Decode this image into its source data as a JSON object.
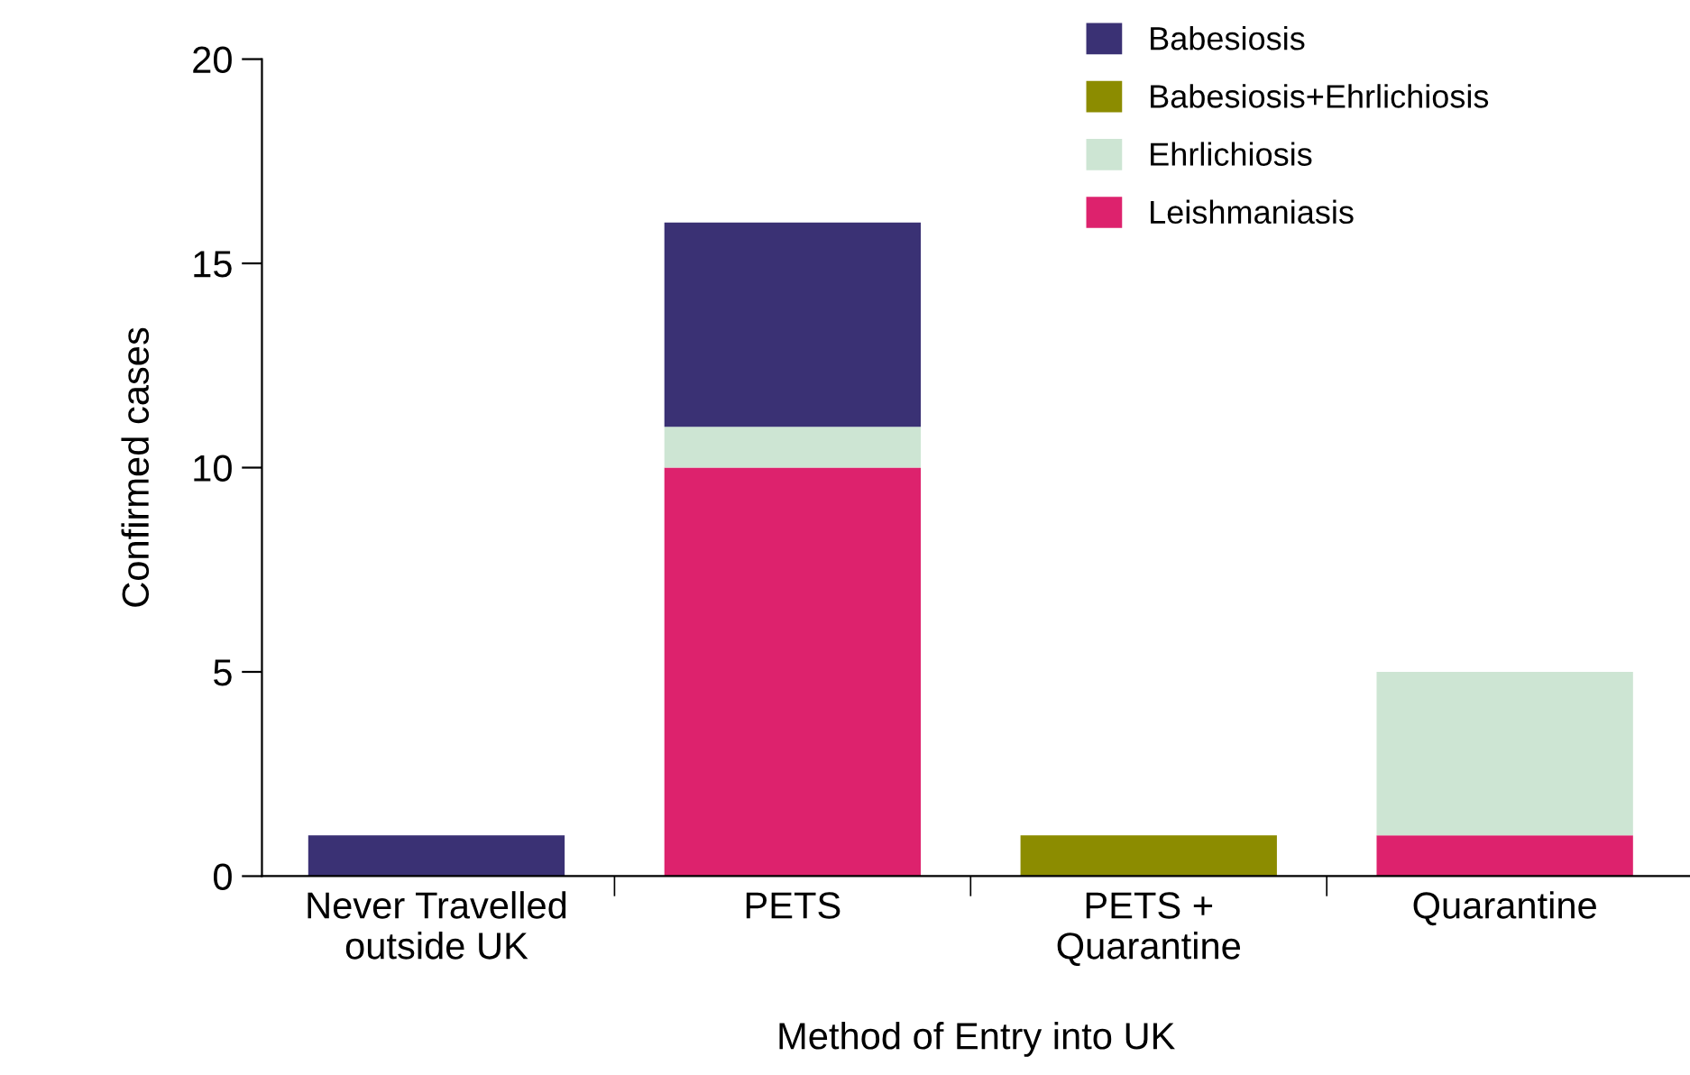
{
  "chart_data": {
    "type": "bar",
    "stacked": true,
    "xlabel": "Method of Entry into UK",
    "ylabel": "Confirmed cases",
    "categories": [
      "Never Travelled\noutside UK",
      "PETS",
      "PETS +\nQuarantine",
      "Quarantine"
    ],
    "series": [
      {
        "name": "Leishmaniasis",
        "color": "#dd226d",
        "values": [
          0,
          10,
          0,
          1
        ]
      },
      {
        "name": "Ehrlichiosis",
        "color": "#cde5d3",
        "values": [
          0,
          1,
          0,
          4
        ]
      },
      {
        "name": "Babesiosis+Ehrlichiosis",
        "color": "#8c8c00",
        "values": [
          0,
          0,
          1,
          0
        ]
      },
      {
        "name": "Babesiosis",
        "color": "#3a3174",
        "values": [
          1,
          5,
          0,
          0
        ]
      }
    ],
    "ylim": [
      0,
      20
    ],
    "yticks": [
      0,
      5,
      10,
      15,
      20
    ],
    "grid": false,
    "legend": "top right"
  }
}
